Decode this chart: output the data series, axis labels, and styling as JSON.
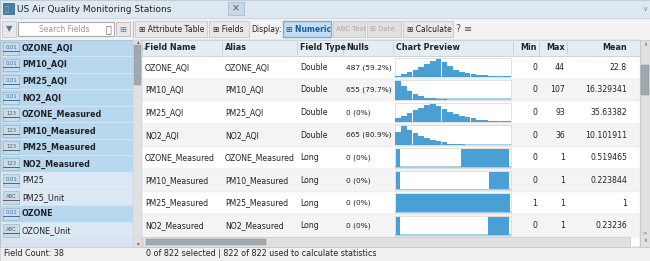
{
  "title": "US Air Quality Monitoring Stations",
  "left_panel_items": [
    {
      "icon": "0.01",
      "name": "OZONE_AQI",
      "selected": true,
      "bold": true
    },
    {
      "icon": "0.01",
      "name": "PM10_AQI",
      "selected": true,
      "bold": true
    },
    {
      "icon": "0.01",
      "name": "PM25_AQI",
      "selected": true,
      "bold": true
    },
    {
      "icon": "0.01",
      "name": "NO2_AQI",
      "selected": true,
      "bold": true
    },
    {
      "icon": "123",
      "name": "OZONE_Measured",
      "selected": true,
      "bold": true
    },
    {
      "icon": "123",
      "name": "PM10_Measured",
      "selected": true,
      "bold": true
    },
    {
      "icon": "123",
      "name": "PM25_Measured",
      "selected": true,
      "bold": true
    },
    {
      "icon": "123",
      "name": "NO2_Measured",
      "selected": true,
      "bold": true
    },
    {
      "icon": "0.01",
      "name": "PM25",
      "selected": false,
      "bold": false
    },
    {
      "icon": "ABC",
      "name": "PM25_Unit",
      "selected": false,
      "bold": false
    },
    {
      "icon": "0.01",
      "name": "OZONE",
      "selected": true,
      "bold": true
    },
    {
      "icon": "ABC",
      "name": "OZONE_Unit",
      "selected": false,
      "bold": false
    }
  ],
  "table_rows": [
    {
      "field_name": "OZONE_AQI",
      "alias": "OZONE_AQI",
      "field_type": "Double",
      "nulls": "487 (59.2%)",
      "min": "0",
      "max": "44",
      "mean": "22.8",
      "chart_type": "histogram",
      "chart_data": [
        2,
        4,
        7,
        10,
        14,
        18,
        22,
        25,
        20,
        15,
        10,
        7,
        5,
        4,
        3,
        3,
        2,
        2,
        1,
        1
      ]
    },
    {
      "field_name": "PM10_AQI",
      "alias": "PM10_AQI",
      "field_type": "Double",
      "nulls": "655 (79.7%)",
      "min": "0",
      "max": "107",
      "mean": "16.329341",
      "chart_type": "histogram",
      "chart_data": [
        25,
        18,
        12,
        8,
        5,
        3,
        2,
        1,
        1,
        0,
        0,
        0,
        0,
        0,
        0,
        0,
        0,
        0,
        0,
        0
      ]
    },
    {
      "field_name": "PM25_AQI",
      "alias": "PM25_AQI",
      "field_type": "Double",
      "nulls": "0 (0%)",
      "min": "0",
      "max": "93",
      "mean": "35.63382",
      "chart_type": "histogram",
      "chart_data": [
        3,
        5,
        7,
        9,
        11,
        13,
        14,
        12,
        10,
        8,
        6,
        5,
        4,
        3,
        2,
        2,
        1,
        1,
        1,
        1
      ]
    },
    {
      "field_name": "NO2_AQI",
      "alias": "NO2_AQI",
      "field_type": "Double",
      "nulls": "665 (80.9%)",
      "min": "0",
      "max": "36",
      "mean": "10.101911",
      "chart_type": "histogram",
      "chart_data": [
        10,
        14,
        11,
        9,
        7,
        5,
        4,
        3,
        2,
        1,
        1,
        1,
        0,
        0,
        0,
        0,
        0,
        0,
        0,
        0
      ]
    },
    {
      "field_name": "OZONE_Measured",
      "alias": "OZONE_Measured",
      "field_type": "Long",
      "nulls": "0 (0%)",
      "min": "0",
      "max": "1",
      "mean": "0.519465",
      "chart_type": "bar2",
      "chart_data": [
        0.48,
        0.52
      ]
    },
    {
      "field_name": "PM10_Measured",
      "alias": "PM10_Measured",
      "field_type": "Long",
      "nulls": "0 (0%)",
      "min": "0",
      "max": "1",
      "mean": "0.223844",
      "chart_type": "bar2",
      "chart_data": [
        0.776,
        0.224
      ]
    },
    {
      "field_name": "PM25_Measured",
      "alias": "PM25_Measured",
      "field_type": "Long",
      "nulls": "0 (0%)",
      "min": "1",
      "max": "1",
      "mean": "1",
      "chart_type": "bar1",
      "chart_data": [
        1.0
      ]
    },
    {
      "field_name": "NO2_Measured",
      "alias": "NO2_Measured",
      "field_type": "Long",
      "nulls": "0 (0%)",
      "min": "0",
      "max": "1",
      "mean": "0.23236",
      "chart_type": "bar2",
      "chart_data": [
        0.768,
        0.232
      ]
    }
  ],
  "status_bar": "0 of 822 selected | 822 of 822 used to calculate statistics",
  "field_count": "Field Count: 38",
  "chart_color": "#4a9fd4",
  "chart_color_light": "#a8cfe8",
  "title_bar_bg": "#dde8f0",
  "toolbar_bg": "#f2f2f2",
  "left_panel_bg": "#d6e4f0",
  "selected_bg": "#b8d8f0",
  "unselected_bg": "#dce8f4",
  "table_header_bg": "#e4ecf4",
  "row_bg_even": "#ffffff",
  "row_bg_odd": "#f4f4f4",
  "border_color": "#b0bcc8",
  "text_color": "#222222",
  "dim_text": "#999999",
  "scrollbar_bg": "#e0e0e0",
  "scrollbar_thumb": "#a0a8b0",
  "window_outer_bg": "#c8c8c8"
}
